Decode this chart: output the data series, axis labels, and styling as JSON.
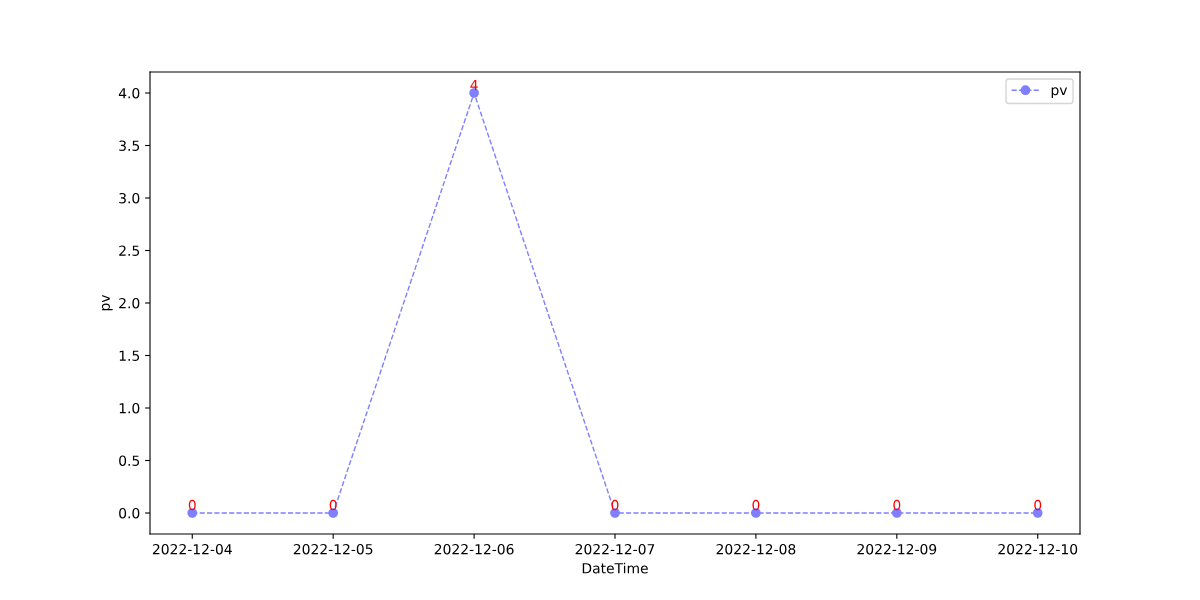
{
  "chart_data": {
    "type": "line",
    "xlabel": "DateTime",
    "ylabel": "pv",
    "categories": [
      "2022-12-04",
      "2022-12-05",
      "2022-12-06",
      "2022-12-07",
      "2022-12-08",
      "2022-12-09",
      "2022-12-10"
    ],
    "series": [
      {
        "name": "pv",
        "color": "#7f7fff",
        "values": [
          0,
          0,
          4,
          0,
          0,
          0,
          0
        ]
      }
    ],
    "ylim": [
      -0.2,
      4.2
    ],
    "yticks": [
      {
        "value": 0,
        "label": "0.0"
      },
      0.5,
      {
        "value": 1,
        "label": "1.0"
      },
      1.5,
      {
        "value": 2,
        "label": "2.0"
      },
      2.5,
      {
        "value": 3,
        "label": "3.0"
      },
      3.5,
      {
        "value": 4,
        "label": "4.0"
      }
    ],
    "marker": "circle",
    "line_style": "dashed",
    "legend": "top right",
    "data_labels": true,
    "grid": false
  }
}
